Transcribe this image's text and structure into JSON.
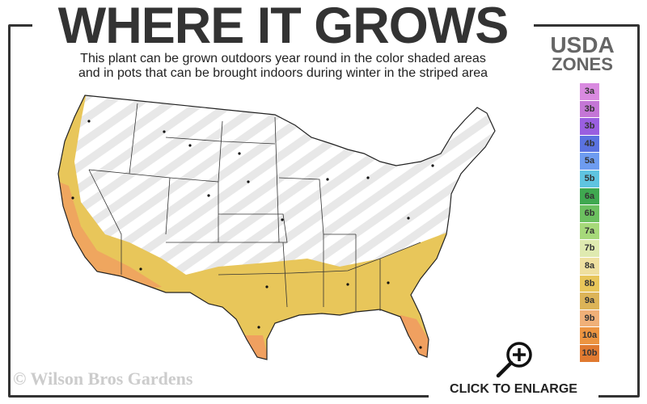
{
  "header": {
    "title": "WHERE IT GROWS",
    "subtitle_line1": "This plant can be grown outdoors year round in the color shaded areas",
    "subtitle_line2": "and in pots that can be brought indoors during winter in the striped area"
  },
  "legend": {
    "title_line1": "USDA",
    "title_line2": "ZONES",
    "zones": [
      {
        "label": "3a",
        "color": "#d98ae0"
      },
      {
        "label": "3b",
        "color": "#c476d6"
      },
      {
        "label": "3b",
        "color": "#9a5fe0"
      },
      {
        "label": "4b",
        "color": "#5a72e0"
      },
      {
        "label": "5a",
        "color": "#6e9cf0"
      },
      {
        "label": "5b",
        "color": "#5fc4e0"
      },
      {
        "label": "6a",
        "color": "#3fa850"
      },
      {
        "label": "6b",
        "color": "#6cc060"
      },
      {
        "label": "7a",
        "color": "#a6d97a"
      },
      {
        "label": "7b",
        "color": "#dfeab0"
      },
      {
        "label": "8a",
        "color": "#efe0a0"
      },
      {
        "label": "8b",
        "color": "#e8c65a"
      },
      {
        "label": "9a",
        "color": "#dcb458"
      },
      {
        "label": "9b",
        "color": "#f0b078"
      },
      {
        "label": "10a",
        "color": "#ec9440"
      },
      {
        "label": "10b",
        "color": "#e07a30"
      }
    ]
  },
  "map": {
    "shaded_color": "#e8c65a",
    "warm_color": "#f0a060",
    "stripe_color": "#e6e6e6"
  },
  "footer": {
    "watermark": "© Wilson Bros Gardens",
    "enlarge_label": "CLICK TO ENLARGE",
    "enlarge_icon": "zoom-in-icon"
  }
}
